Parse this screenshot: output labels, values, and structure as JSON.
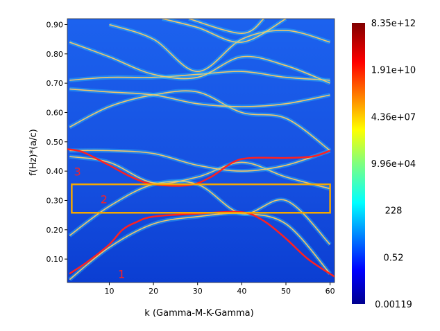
{
  "chart_data": {
    "type": "heatmap",
    "xlabel": "k (Gamma-M-K-Gamma)",
    "ylabel": "f(Hz)*(a/c)",
    "xlim": [
      0.5,
      61
    ],
    "ylim": [
      0.02,
      0.92
    ],
    "x_ticks": [
      10,
      20,
      30,
      40,
      50,
      60
    ],
    "x_tick_labels": [
      "10",
      "20",
      "30",
      "40",
      "50",
      "60"
    ],
    "y_ticks": [
      0.1,
      0.2,
      0.3,
      0.4,
      0.5,
      0.6,
      0.7,
      0.8,
      0.9
    ],
    "y_tick_labels": [
      "0.10",
      "0.20",
      "0.30",
      "0.40",
      "0.50",
      "0.60",
      "0.70",
      "0.80",
      "0.90"
    ],
    "grid": false,
    "colorbar": {
      "scale": "log",
      "tick_labels": [
        "8.35e+12",
        "1.91e+10",
        "4.36e+07",
        "9.96e+04",
        "228",
        "0.52",
        "0.00119"
      ],
      "colormap": "jet"
    },
    "background_color": "#1650e0",
    "band_color": "#f3c66a",
    "bands": [
      {
        "x": [
          1,
          10,
          20,
          30,
          40,
          50,
          60
        ],
        "y": [
          0.03,
          0.14,
          0.22,
          0.245,
          0.255,
          0.22,
          0.05
        ]
      },
      {
        "x": [
          1,
          10,
          20,
          30,
          40,
          50,
          60
        ],
        "y": [
          0.18,
          0.28,
          0.355,
          0.355,
          0.255,
          0.3,
          0.15
        ]
      },
      {
        "x": [
          1,
          10,
          20,
          30,
          40,
          50,
          60
        ],
        "y": [
          0.45,
          0.43,
          0.36,
          0.38,
          0.43,
          0.38,
          0.34
        ]
      },
      {
        "x": [
          1,
          10,
          20,
          30,
          40,
          50,
          60
        ],
        "y": [
          0.47,
          0.47,
          0.46,
          0.42,
          0.4,
          0.42,
          0.47
        ]
      },
      {
        "x": [
          1,
          10,
          20,
          30,
          40,
          50,
          60
        ],
        "y": [
          0.55,
          0.62,
          0.66,
          0.67,
          0.6,
          0.58,
          0.47
        ]
      },
      {
        "x": [
          1,
          10,
          20,
          30,
          40,
          50,
          60
        ],
        "y": [
          0.68,
          0.67,
          0.66,
          0.63,
          0.62,
          0.63,
          0.66
        ]
      },
      {
        "x": [
          1,
          10,
          20,
          30,
          40,
          50,
          60
        ],
        "y": [
          0.71,
          0.72,
          0.72,
          0.73,
          0.74,
          0.72,
          0.71
        ]
      },
      {
        "x": [
          1,
          10,
          20,
          30,
          40,
          50,
          60
        ],
        "y": [
          0.84,
          0.79,
          0.73,
          0.72,
          0.79,
          0.76,
          0.7
        ]
      },
      {
        "x": [
          10,
          20,
          30,
          40,
          50,
          60
        ],
        "y": [
          0.9,
          0.85,
          0.74,
          0.85,
          0.88,
          0.84
        ]
      },
      {
        "x": [
          22,
          30,
          40,
          50
        ],
        "y": [
          0.92,
          0.89,
          0.84,
          0.92
        ]
      },
      {
        "x": [
          28,
          40,
          45
        ],
        "y": [
          0.92,
          0.87,
          0.92
        ]
      }
    ],
    "annotations": {
      "color": "#ff2020",
      "gap_box_color": "#f5a800",
      "labels": [
        "1",
        "2",
        "3"
      ],
      "curve_1": {
        "x": [
          1,
          5,
          10,
          13,
          16,
          20,
          30,
          40,
          45,
          50,
          55,
          61
        ],
        "y": [
          0.05,
          0.09,
          0.15,
          0.2,
          0.225,
          0.245,
          0.255,
          0.26,
          0.23,
          0.17,
          0.1,
          0.04
        ]
      },
      "curve_3": {
        "x": [
          0.5,
          4,
          10,
          15,
          20,
          28,
          33,
          38,
          42,
          50,
          56,
          60
        ],
        "y": [
          0.475,
          0.465,
          0.42,
          0.38,
          0.355,
          0.352,
          0.38,
          0.43,
          0.445,
          0.445,
          0.45,
          0.47
        ]
      },
      "gap_box": {
        "x": [
          1.5,
          60
        ],
        "y": [
          0.258,
          0.355
        ]
      },
      "label_positions": {
        "1": {
          "x": 12,
          "y": 0.035
        },
        "2": {
          "x": 8,
          "y": 0.29
        },
        "3": {
          "x": 2,
          "y": 0.385
        }
      }
    }
  }
}
